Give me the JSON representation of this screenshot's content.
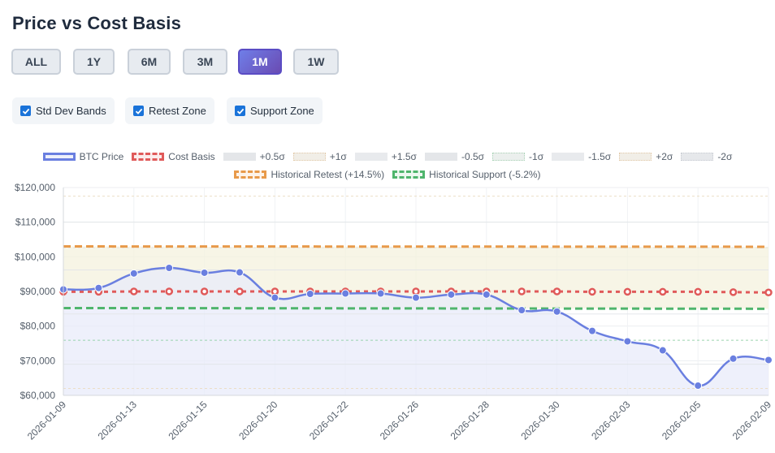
{
  "header": {
    "title": "Price vs Cost Basis"
  },
  "range_buttons": [
    {
      "label": "ALL",
      "active": false
    },
    {
      "label": "1Y",
      "active": false
    },
    {
      "label": "6M",
      "active": false
    },
    {
      "label": "3M",
      "active": false
    },
    {
      "label": "1M",
      "active": true
    },
    {
      "label": "1W",
      "active": false
    }
  ],
  "toggles": [
    {
      "label": "Std Dev Bands",
      "checked": true
    },
    {
      "label": "Retest Zone",
      "checked": true
    },
    {
      "label": "Support Zone",
      "checked": true
    }
  ],
  "colors": {
    "price": "#6a7fe0",
    "cost_basis": "#e05a5a",
    "retest": "#e89a4a",
    "support": "#4fb56c",
    "active_button": "#6a5bd0"
  },
  "chart_data": {
    "type": "line",
    "title": "",
    "xlabel": "",
    "ylabel": "",
    "ylim": [
      60000,
      120000
    ],
    "y_ticks": [
      "$60,000",
      "$70,000",
      "$80,000",
      "$90,000",
      "$100,000",
      "$110,000",
      "$120,000"
    ],
    "x_tick_labels": [
      "2026-01-09",
      "2026-01-13",
      "2026-01-15",
      "2026-01-20",
      "2026-01-22",
      "2026-01-26",
      "2026-01-28",
      "2026-01-30",
      "2026-02-03",
      "2026-02-05",
      "2026-02-09"
    ],
    "x": [
      "2026-01-09",
      "2026-01-12",
      "2026-01-13",
      "2026-01-14",
      "2026-01-15",
      "2026-01-16",
      "2026-01-20",
      "2026-01-21",
      "2026-01-22",
      "2026-01-23",
      "2026-01-26",
      "2026-01-27",
      "2026-01-28",
      "2026-01-29",
      "2026-01-30",
      "2026-02-02",
      "2026-02-03",
      "2026-02-04",
      "2026-02-05",
      "2026-02-06",
      "2026-02-09"
    ],
    "series": [
      {
        "name": "BTC Price",
        "values": [
          90600,
          91000,
          95200,
          96800,
          95400,
          95500,
          88200,
          89300,
          89400,
          89400,
          88200,
          89100,
          89100,
          84600,
          84200,
          78600,
          75600,
          73000,
          62800,
          70600,
          70200
        ]
      },
      {
        "name": "Cost Basis",
        "values": [
          89900,
          89900,
          90000,
          90000,
          90000,
          90000,
          90000,
          90000,
          90000,
          90000,
          90000,
          90000,
          90000,
          90000,
          90000,
          89900,
          89900,
          89900,
          89900,
          89800,
          89700
        ]
      }
    ],
    "bands": [
      {
        "name": "+0.5σ",
        "value": 96200
      },
      {
        "name": "+1σ",
        "value": 102600
      },
      {
        "name": "+1.5σ",
        "value": 110000
      },
      {
        "name": "-0.5σ",
        "value": 83500
      },
      {
        "name": "-1σ",
        "value": 75900
      },
      {
        "name": "-1.5σ",
        "value": 69000
      },
      {
        "name": "+2σ",
        "value": 117500
      },
      {
        "name": "-2σ",
        "value": 62000
      }
    ],
    "zones": [
      {
        "name": "Historical Retest (+14.5%)",
        "values": [
          103000,
          102900
        ]
      },
      {
        "name": "Historical Support (-5.2%)",
        "values": [
          85200,
          85000
        ]
      }
    ],
    "grid": true,
    "legend_position": "top"
  }
}
